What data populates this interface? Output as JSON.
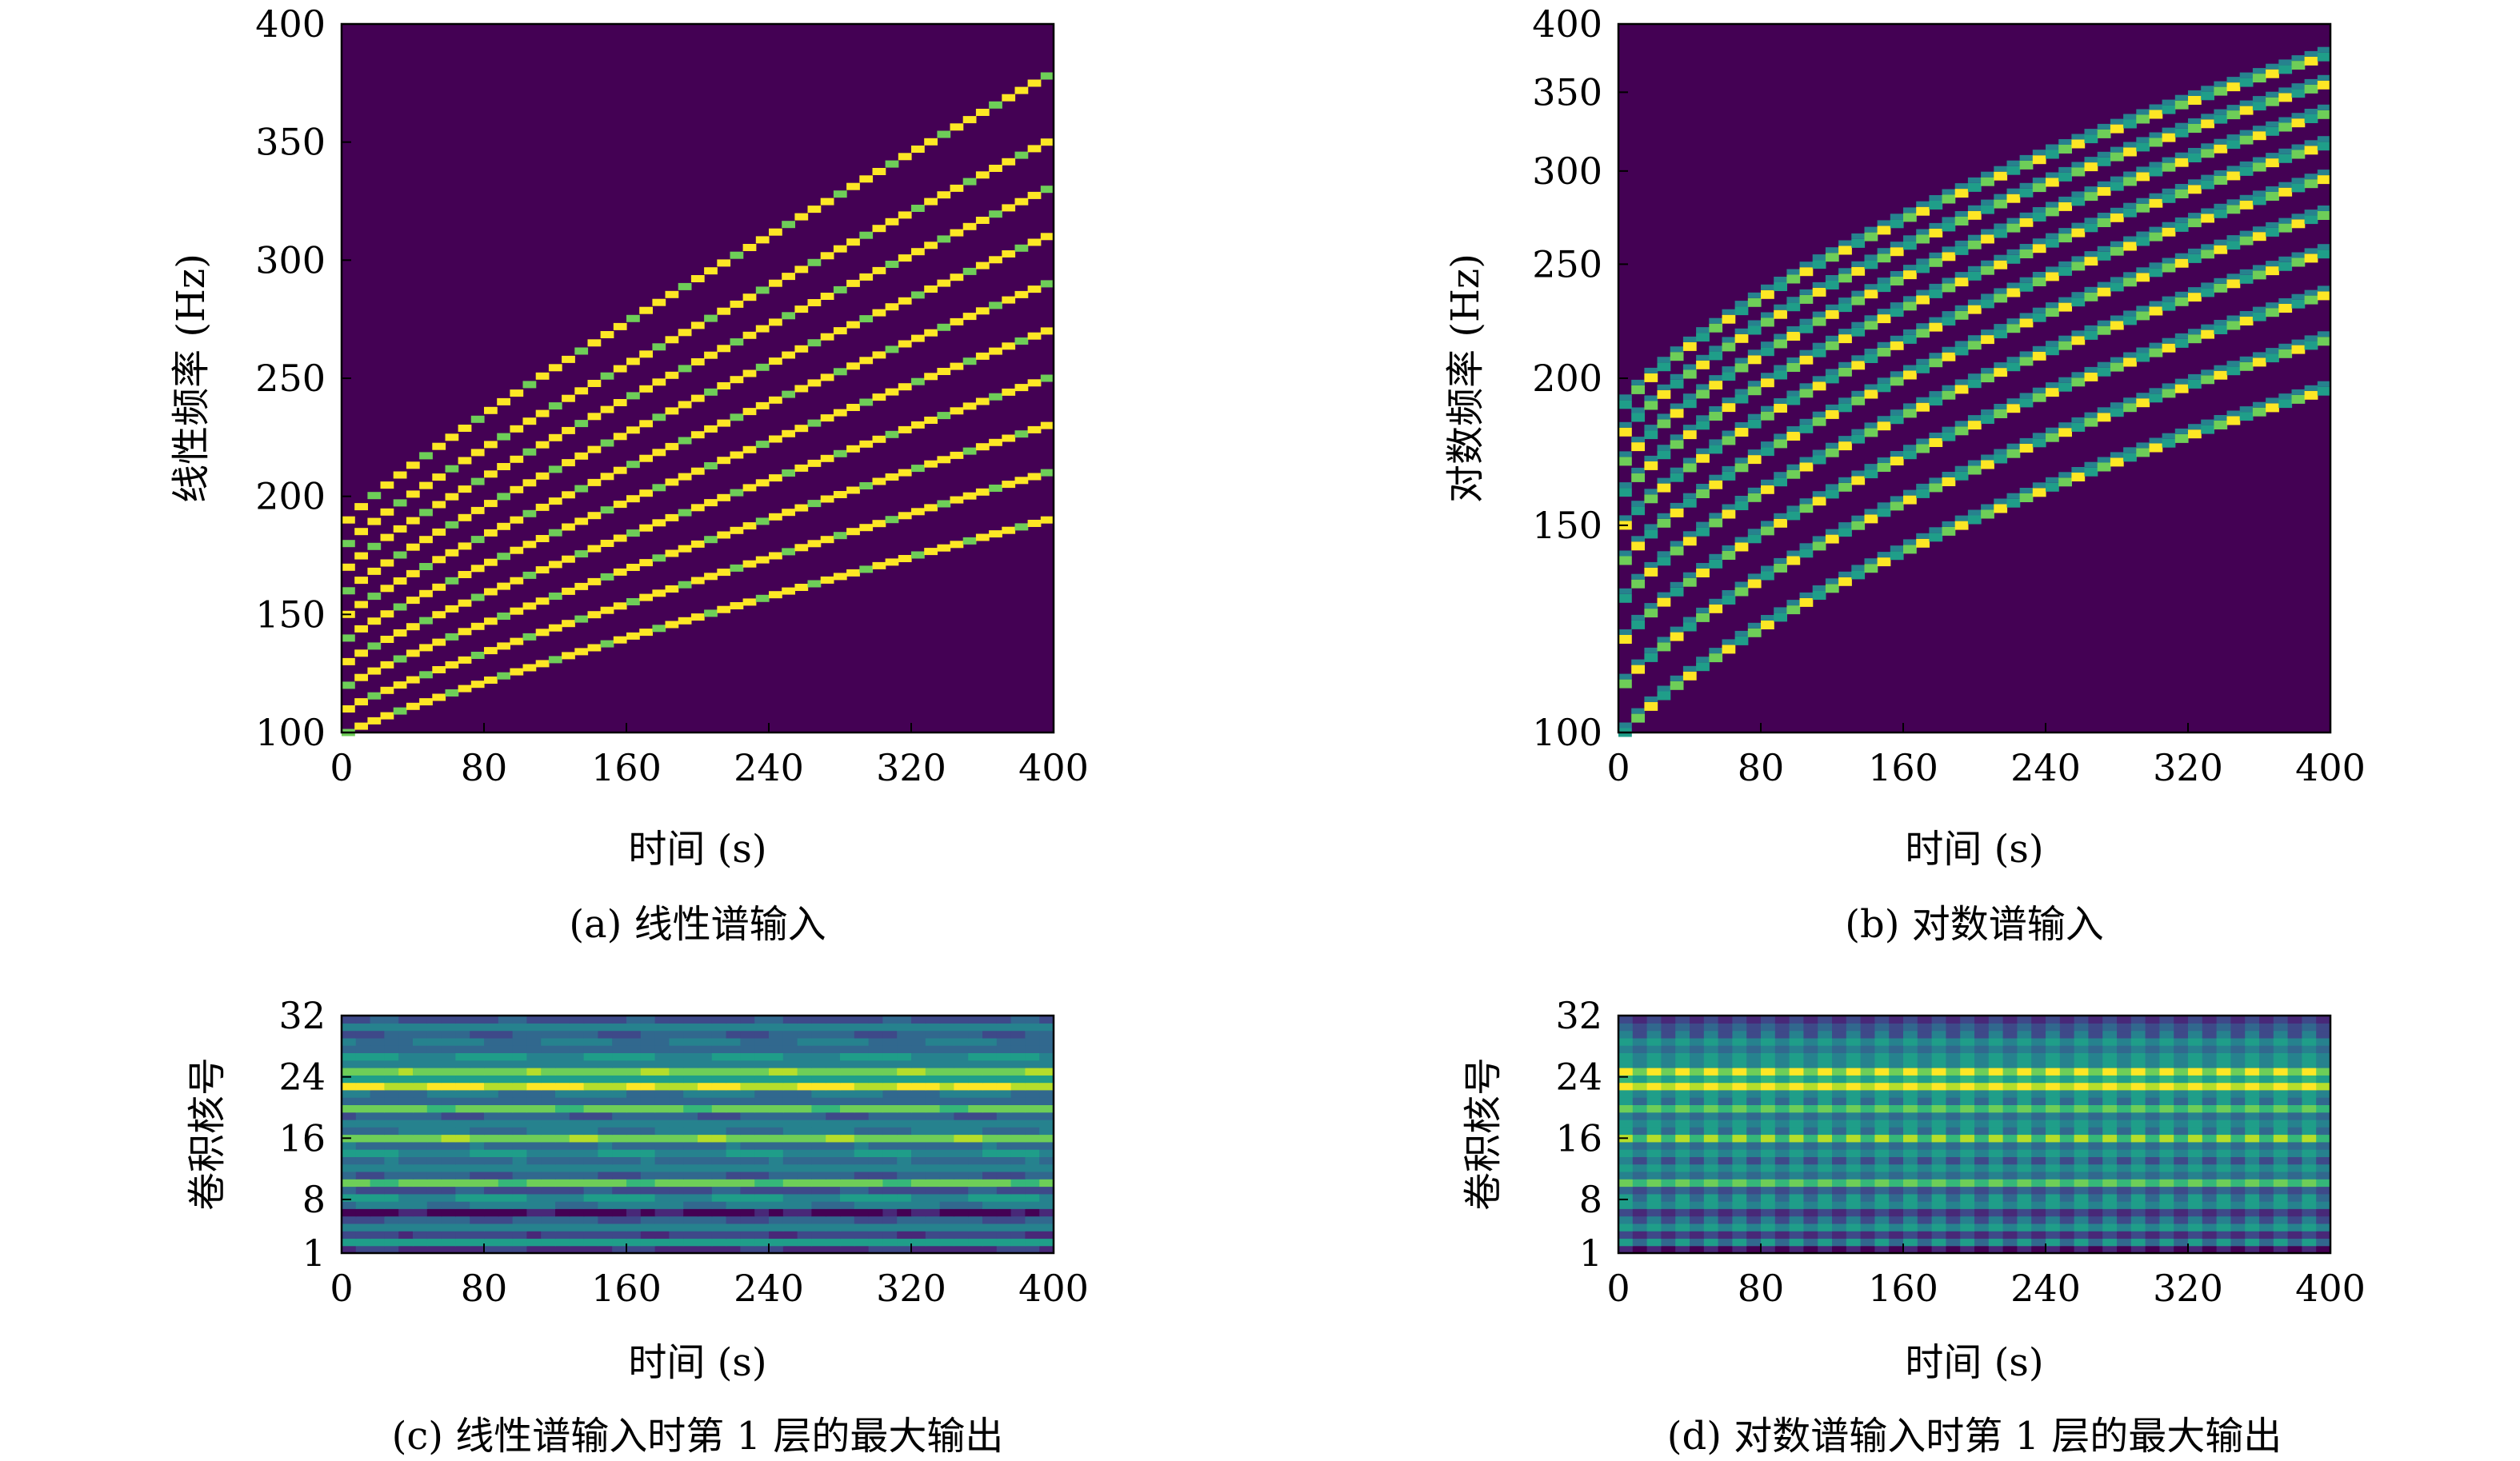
{
  "colors": {
    "viridis": [
      "#440154",
      "#482878",
      "#3e4989",
      "#31688e",
      "#26828e",
      "#1f9e89",
      "#35b779",
      "#6ece58",
      "#b5de2b",
      "#fde725"
    ],
    "background": "#440154"
  },
  "panels": [
    {
      "chart_data": {
        "type": "heatmap",
        "title": "",
        "xlabel": "时间 (s)",
        "ylabel": "线性频率 (Hz)",
        "xlim": [
          0,
          400
        ],
        "ylim": [
          100,
          400
        ],
        "yscale": "linear",
        "xticks": [
          "0",
          "80",
          "160",
          "240",
          "320",
          "400"
        ],
        "yticks": [
          "100",
          "150",
          "200",
          "250",
          "300",
          "350",
          "400"
        ],
        "series": [
          {
            "harmonic": 1,
            "start_hz": 100,
            "end_hz": 190
          },
          {
            "harmonic": 2,
            "start_hz": 110,
            "end_hz": 210
          },
          {
            "harmonic": 3,
            "start_hz": 120,
            "end_hz": 230
          },
          {
            "harmonic": 4,
            "start_hz": 130,
            "end_hz": 250
          },
          {
            "harmonic": 5,
            "start_hz": 140,
            "end_hz": 270
          },
          {
            "harmonic": 6,
            "start_hz": 150,
            "end_hz": 290
          },
          {
            "harmonic": 7,
            "start_hz": 160,
            "end_hz": 310
          },
          {
            "harmonic": 8,
            "start_hz": 170,
            "end_hz": 330
          },
          {
            "harmonic": 9,
            "start_hz": 180,
            "end_hz": 350
          },
          {
            "harmonic": 10,
            "start_hz": 190,
            "end_hz": 378
          }
        ]
      },
      "caption": "(a) 线性谱输入"
    },
    {
      "chart_data": {
        "type": "heatmap",
        "title": "",
        "xlabel": "时间 (s)",
        "ylabel": "对数频率 (Hz)",
        "xlim": [
          0,
          400
        ],
        "ylim": [
          100,
          400
        ],
        "yscale": "log",
        "xticks": [
          "0",
          "80",
          "160",
          "240",
          "320",
          "400"
        ],
        "yticks": [
          "100",
          "150",
          "200",
          "250",
          "300",
          "350",
          "400"
        ],
        "series": [
          {
            "harmonic": 1,
            "start_hz": 100,
            "end_hz": 195
          },
          {
            "harmonic": 2,
            "start_hz": 110,
            "end_hz": 215
          },
          {
            "harmonic": 3,
            "start_hz": 120,
            "end_hz": 235
          },
          {
            "harmonic": 4,
            "start_hz": 130,
            "end_hz": 255
          },
          {
            "harmonic": 5,
            "start_hz": 140,
            "end_hz": 275
          },
          {
            "harmonic": 6,
            "start_hz": 150,
            "end_hz": 295
          },
          {
            "harmonic": 7,
            "start_hz": 160,
            "end_hz": 315
          },
          {
            "harmonic": 8,
            "start_hz": 170,
            "end_hz": 335
          },
          {
            "harmonic": 9,
            "start_hz": 180,
            "end_hz": 355
          },
          {
            "harmonic": 10,
            "start_hz": 190,
            "end_hz": 375
          }
        ]
      },
      "caption": "(b) 对数谱输入"
    },
    {
      "chart_data": {
        "type": "heatmap",
        "title": "",
        "xlabel": "时间 (s)",
        "ylabel": "卷积核号",
        "xlim": [
          0,
          400
        ],
        "ylim": [
          1,
          32
        ],
        "xticks": [
          "0",
          "80",
          "160",
          "240",
          "320",
          "400"
        ],
        "yticks": [
          "1",
          "8",
          "16",
          "24",
          "32"
        ],
        "row_levels": [
          0.15,
          0.55,
          0.2,
          0.45,
          0.3,
          0.05,
          0.4,
          0.5,
          0.25,
          0.75,
          0.3,
          0.45,
          0.35,
          0.5,
          0.35,
          0.8,
          0.4,
          0.45,
          0.3,
          0.75,
          0.35,
          0.4,
          0.95,
          0.55,
          0.8,
          0.45,
          0.5,
          0.35,
          0.4,
          0.3,
          0.45,
          0.25
        ]
      },
      "caption": "(c) 线性谱输入时第 1 层的最大输出"
    },
    {
      "chart_data": {
        "type": "heatmap",
        "title": "",
        "xlabel": "时间 (s)",
        "ylabel": "卷积核号",
        "xlim": [
          0,
          400
        ],
        "ylim": [
          1,
          32
        ],
        "xticks": [
          "0",
          "80",
          "160",
          "240",
          "320",
          "400"
        ],
        "yticks": [
          "1",
          "8",
          "16",
          "24",
          "32"
        ],
        "row_levels": [
          0.1,
          0.45,
          0.2,
          0.5,
          0.35,
          0.2,
          0.55,
          0.45,
          0.3,
          0.7,
          0.4,
          0.5,
          0.35,
          0.55,
          0.4,
          0.8,
          0.45,
          0.5,
          0.4,
          0.7,
          0.45,
          0.5,
          0.95,
          0.6,
          0.9,
          0.5,
          0.55,
          0.4,
          0.5,
          0.35,
          0.3,
          0.2
        ]
      },
      "caption": "(d) 对数谱输入时第 1 层的最大输出"
    }
  ]
}
